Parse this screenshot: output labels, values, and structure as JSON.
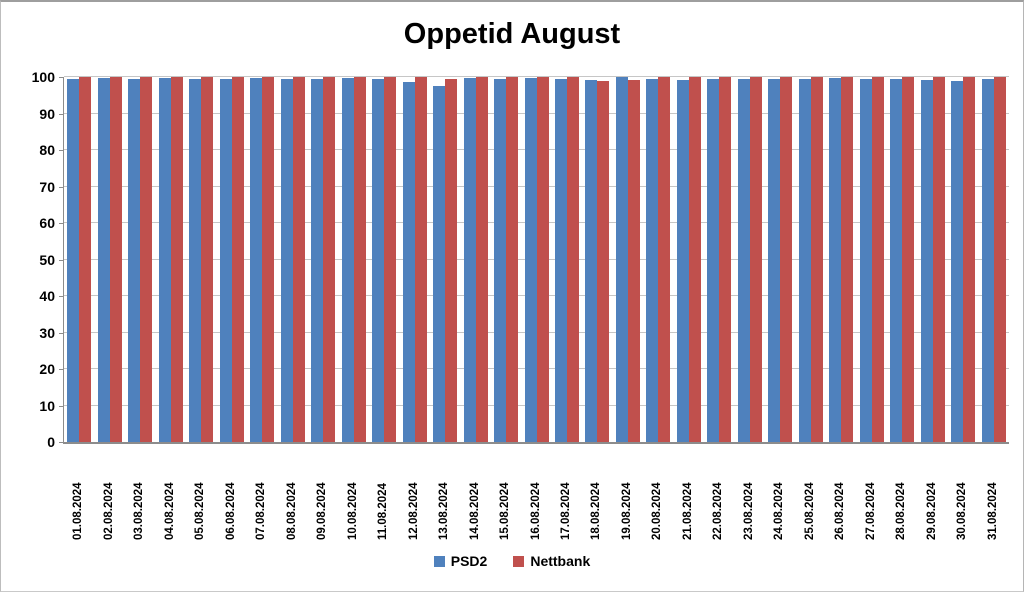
{
  "chart_data": {
    "type": "bar",
    "title": "Oppetid August",
    "xlabel": "",
    "ylabel": "",
    "ylim": [
      0,
      100
    ],
    "yticks": [
      0,
      10,
      20,
      30,
      40,
      50,
      60,
      70,
      80,
      90,
      100
    ],
    "grid": true,
    "legend_position": "bottom",
    "categories": [
      "01.08.2024",
      "02.08.2024",
      "03.08.2024",
      "04.08.2024",
      "05.08.2024",
      "06.08.2024",
      "07.08.2024",
      "08.08.2024",
      "09.08.2024",
      "10.08.2024",
      "11.08.2024",
      "12.08.2024",
      "13.08.2024",
      "14.08.2024",
      "15.08.2024",
      "16.08.2024",
      "17.08.2024",
      "18.08.2024",
      "19.08.2024",
      "20.08.2024",
      "21.08.2024",
      "22.08.2024",
      "23.08.2024",
      "24.08.2024",
      "25.08.2024",
      "26.08.2024",
      "27.08.2024",
      "28.08.2024",
      "29.08.2024",
      "30.08.2024",
      "31.08.2024"
    ],
    "series": [
      {
        "name": "PSD2",
        "color": "#4F81BD",
        "values": [
          99.5,
          99.6,
          99.5,
          99.6,
          99.5,
          99.5,
          99.6,
          99.5,
          99.5,
          99.6,
          99.5,
          98.7,
          97.6,
          99.6,
          99.5,
          99.7,
          99.5,
          99.3,
          99.9,
          99.5,
          99.2,
          99.5,
          99.5,
          99.5,
          99.5,
          99.6,
          99.5,
          99.5,
          99.1,
          99.0,
          99.5
        ]
      },
      {
        "name": "Nettbank",
        "color": "#C0504D",
        "values": [
          100,
          100,
          100,
          100,
          100,
          100,
          100,
          100,
          100,
          100,
          100,
          100,
          99.4,
          100,
          100,
          100,
          100,
          98.9,
          99.1,
          100,
          100,
          100,
          100,
          100,
          100,
          100,
          100,
          100,
          100,
          100,
          100
        ]
      }
    ],
    "colors": {
      "gridline": "#C6C6C6",
      "axis": "#8C8C8C",
      "background": "#FFFFFF",
      "text": "#000000"
    }
  }
}
